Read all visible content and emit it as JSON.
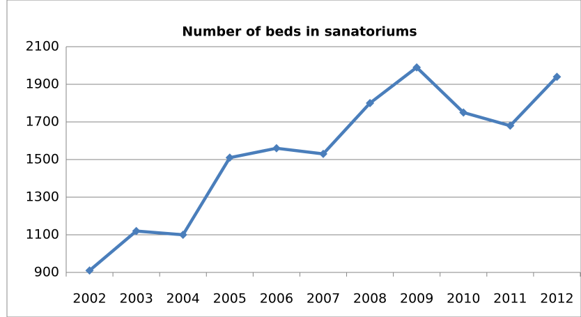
{
  "chart_data": {
    "type": "line",
    "title": "Number of beds in sanatoriums",
    "categories": [
      "2002",
      "2003",
      "2004",
      "2005",
      "2006",
      "2007",
      "2008",
      "2009",
      "2010",
      "2011",
      "2012"
    ],
    "values": [
      910,
      1120,
      1100,
      1510,
      1560,
      1530,
      1800,
      1990,
      1750,
      1680,
      1940
    ],
    "color": "#4a7ebb",
    "ylim": [
      900,
      2100
    ],
    "yticks": [
      900,
      1100,
      1300,
      1500,
      1700,
      1900,
      2100
    ],
    "grid": true
  }
}
